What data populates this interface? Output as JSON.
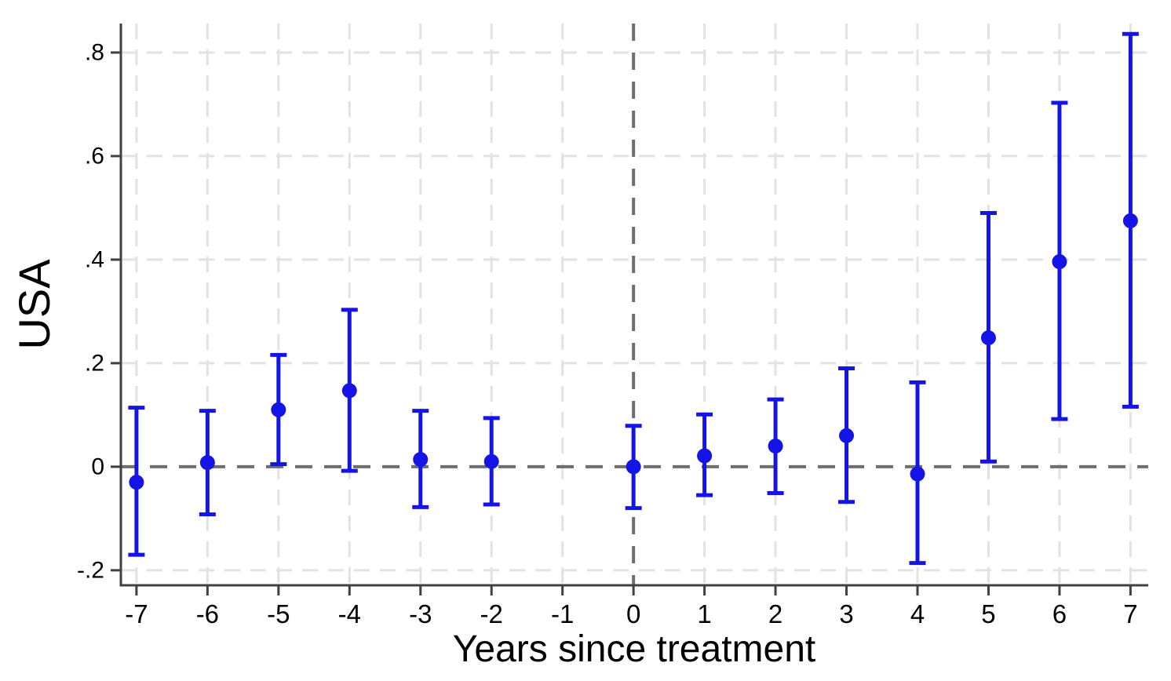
{
  "figure": {
    "background": "#ffffff"
  },
  "chart_data": {
    "type": "scatter",
    "subtype": "event-study-coefficient-plot",
    "title": "",
    "xlabel": "Years since treatment",
    "ylabel": "USA",
    "x_ticks": [
      -7,
      -6,
      -5,
      -4,
      -3,
      -2,
      -1,
      0,
      1,
      2,
      3,
      4,
      5,
      6,
      7
    ],
    "x_tick_labels": [
      "-7",
      "-6",
      "-5",
      "-4",
      "-3",
      "-2",
      "-1",
      "0",
      "1",
      "2",
      "3",
      "4",
      "5",
      "6",
      "7"
    ],
    "y_ticks": [
      -0.2,
      0,
      0.2,
      0.4,
      0.6,
      0.8
    ],
    "y_tick_labels": [
      "-.2",
      "0",
      ".2",
      ".4",
      ".6",
      ".8"
    ],
    "xlim": [
      -7.22,
      7.25
    ],
    "ylim": [
      -0.229,
      0.856
    ],
    "grid": "dashed-light",
    "legend": "none",
    "reference_lines": [
      {
        "axis": "x",
        "value": 0,
        "style": "dashed"
      },
      {
        "axis": "y",
        "value": 0,
        "style": "dashed"
      }
    ],
    "omitted_period": -1,
    "series": [
      {
        "name": "USA event-study coefficients with confidence intervals",
        "marker": "circle",
        "color": "#1414e6",
        "points": [
          {
            "x": -7,
            "y": -0.03,
            "ci_low": -0.17,
            "ci_high": 0.114
          },
          {
            "x": -6,
            "y": 0.008,
            "ci_low": -0.092,
            "ci_high": 0.108
          },
          {
            "x": -5,
            "y": 0.11,
            "ci_low": 0.005,
            "ci_high": 0.216
          },
          {
            "x": -4,
            "y": 0.147,
            "ci_low": -0.008,
            "ci_high": 0.303
          },
          {
            "x": -3,
            "y": 0.014,
            "ci_low": -0.078,
            "ci_high": 0.108
          },
          {
            "x": -2,
            "y": 0.01,
            "ci_low": -0.073,
            "ci_high": 0.094
          },
          {
            "x": 0,
            "y": 0.0,
            "ci_low": -0.08,
            "ci_high": 0.079
          },
          {
            "x": 1,
            "y": 0.021,
            "ci_low": -0.055,
            "ci_high": 0.101
          },
          {
            "x": 2,
            "y": 0.04,
            "ci_low": -0.051,
            "ci_high": 0.13
          },
          {
            "x": 3,
            "y": 0.06,
            "ci_low": -0.068,
            "ci_high": 0.19
          },
          {
            "x": 4,
            "y": -0.014,
            "ci_low": -0.186,
            "ci_high": 0.163
          },
          {
            "x": 5,
            "y": 0.249,
            "ci_low": 0.01,
            "ci_high": 0.49
          },
          {
            "x": 6,
            "y": 0.396,
            "ci_low": 0.092,
            "ci_high": 0.703
          },
          {
            "x": 7,
            "y": 0.475,
            "ci_low": 0.116,
            "ci_high": 0.836
          }
        ]
      }
    ],
    "colors": {
      "marker": "#1414e6",
      "axis": "#404040",
      "grid": "#e2e2e2",
      "reference": "#6e6e6e",
      "text": "#000000"
    }
  }
}
